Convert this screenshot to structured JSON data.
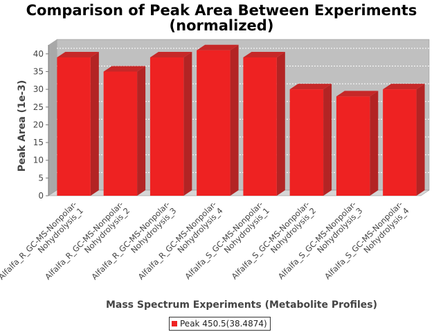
{
  "chart_data": {
    "type": "bar",
    "title_lines": [
      "Comparison of Peak Area Between Experiments",
      "(normalized)"
    ],
    "xlabel": "Mass Spectrum Experiments (Metabolite Profiles)",
    "ylabel": "Peak Area (1e-3)",
    "ylim": [
      0,
      42.5
    ],
    "yticks": [
      0,
      5,
      10,
      15,
      20,
      25,
      30,
      35,
      40
    ],
    "grid": true,
    "legend_position": "bottom",
    "categories": [
      [
        "Alfalfa_R_GC-MS-Nonpolar-",
        "Nohydrolysis_1"
      ],
      [
        "Alfalfa_R_GC-MS-Nonpolar-",
        "Nohydrolysis_2"
      ],
      [
        "Alfalfa_R_GC-MS-Nonpolar-",
        "Nohydrolysis_3"
      ],
      [
        "Alfalfa_R_GC-MS-Nonpolar-",
        "Nohydrolysis_4"
      ],
      [
        "Alfalfa_S_GC-MS-Nonpolar-",
        "Nohydrolysis_1"
      ],
      [
        "Alfalfa_S_GC-MS-Nonpolar-",
        "Nohydrolysis_2"
      ],
      [
        "Alfalfa_S_GC-MS-Nonpolar-",
        "Nohydrolysis_3"
      ],
      [
        "Alfalfa_S_GC-MS-Nonpolar-",
        "Nohydrolysis_4"
      ]
    ],
    "series": [
      {
        "name": "Peak 450.5(38.4874)",
        "color": "#ee2222",
        "values": [
          39.0,
          35.0,
          39.0,
          41.0,
          39.0,
          30.0,
          28.0,
          30.0
        ]
      }
    ]
  }
}
